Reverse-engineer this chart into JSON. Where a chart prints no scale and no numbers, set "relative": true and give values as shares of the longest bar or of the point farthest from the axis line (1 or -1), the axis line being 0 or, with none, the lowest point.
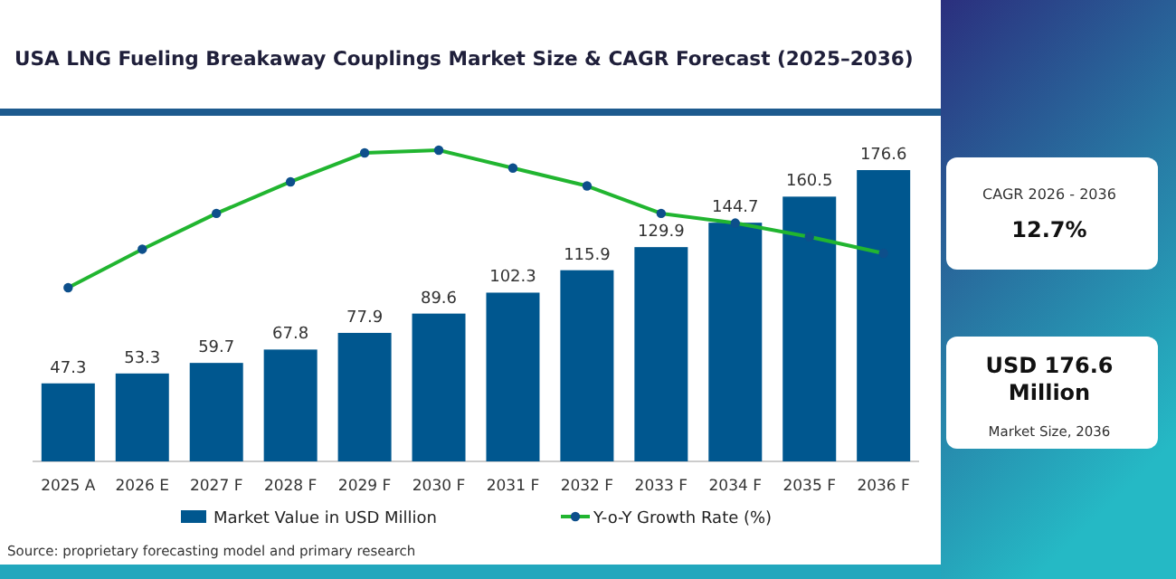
{
  "chart_data": [
    {
      "type": "bar",
      "title": "USA LNG Fueling Breakaway Couplings Market Size & CAGR Forecast (2025–2036)",
      "categories": [
        "2025 A",
        "2026 E",
        "2027 F",
        "2028 F",
        "2029 F",
        "2030 F",
        "2031 F",
        "2032 F",
        "2033 F",
        "2034 F",
        "2035 F",
        "2036 F"
      ],
      "series": [
        {
          "name": "Market Value in USD Million",
          "color": "#00578f",
          "values": [
            47.3,
            53.3,
            59.7,
            67.8,
            77.9,
            89.6,
            102.3,
            115.9,
            129.9,
            144.7,
            160.5,
            176.6
          ]
        }
      ],
      "data_labels": true,
      "legend": "bottom",
      "annotations": [
        "CAGR 2026 - 2036",
        "12.7%",
        "USD 176.6 Million",
        "Market Size, 2036",
        "Source: proprietary forecasting model and primary research"
      ]
    },
    {
      "type": "line",
      "relative": true,
      "legend": "bottom",
      "marker": "circle",
      "categories": [
        null,
        null,
        null,
        null,
        null,
        null,
        null,
        null,
        null,
        null,
        null,
        null
      ],
      "series": [
        {
          "name": "Y-o-Y Growth Rate (%)",
          "color": "#21b530",
          "values": [
            0,
            0.28,
            0.54,
            0.77,
            0.98,
            1,
            0.87,
            0.74,
            0.54,
            0.47,
            0.37,
            0.25
          ]
        }
      ]
    }
  ]
}
